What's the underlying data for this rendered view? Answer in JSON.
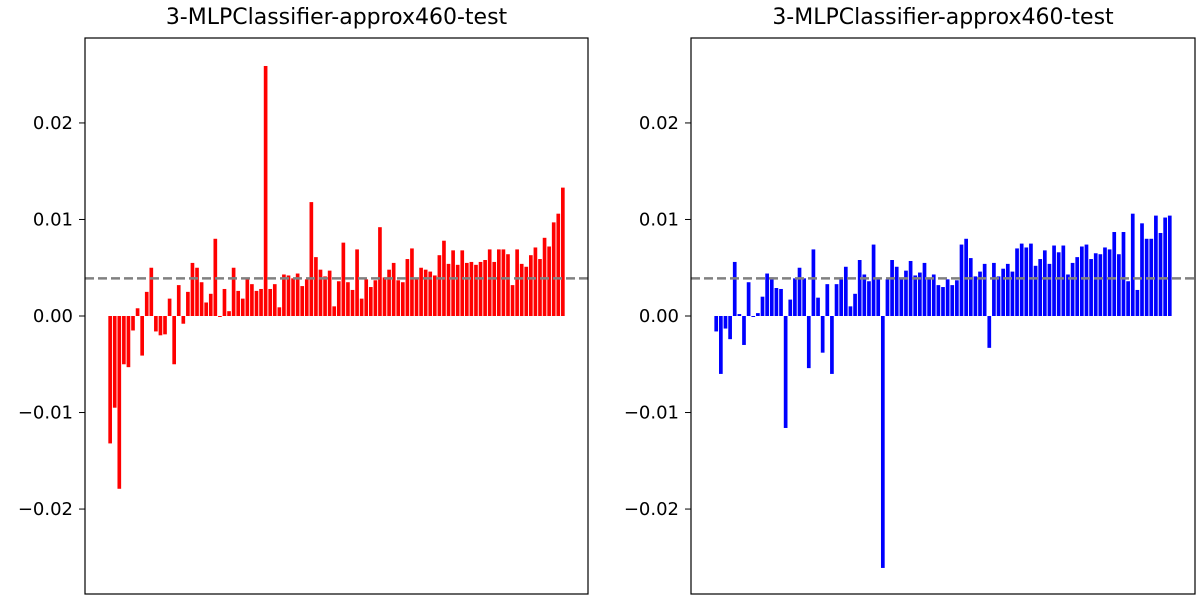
{
  "chart_data": [
    {
      "type": "bar",
      "title": "3-MLPClassifier-approx460-test",
      "xlabel": "",
      "ylabel": "",
      "ylim": [
        -0.0288,
        0.0288
      ],
      "yticks": [
        -0.02,
        -0.01,
        0.0,
        0.01,
        0.02
      ],
      "ytick_labels": [
        "−0.02",
        "−0.01",
        "0.00",
        "0.01",
        "0.02"
      ],
      "bar_color": "#ff0000",
      "reference_line": {
        "y": 0.0039,
        "style": "dashed",
        "color": "#808080"
      },
      "values": [
        -0.0132,
        -0.0095,
        -0.0179,
        -0.005,
        -0.0053,
        -0.0015,
        0.0008,
        -0.0041,
        0.0025,
        0.005,
        -0.0016,
        -0.002,
        -0.0019,
        0.0018,
        -0.005,
        0.0032,
        -0.0008,
        0.0025,
        0.0055,
        0.005,
        0.0035,
        0.0014,
        0.0023,
        0.008,
        -0.0001,
        0.0028,
        0.0005,
        0.005,
        0.0026,
        0.0018,
        0.0038,
        0.0033,
        0.0026,
        0.0028,
        0.0259,
        0.0028,
        0.0033,
        0.0009,
        0.0043,
        0.0042,
        0.0039,
        0.0044,
        0.0031,
        0.0038,
        0.0118,
        0.0061,
        0.0048,
        0.0041,
        0.0047,
        0.001,
        0.0036,
        0.0076,
        0.0035,
        0.0027,
        0.0069,
        0.0018,
        0.0038,
        0.003,
        0.0037,
        0.0092,
        0.004,
        0.0048,
        0.0055,
        0.0037,
        0.0035,
        0.0059,
        0.007,
        0.0039,
        0.005,
        0.0048,
        0.0046,
        0.0042,
        0.0063,
        0.0078,
        0.0054,
        0.0068,
        0.0053,
        0.0068,
        0.0055,
        0.0056,
        0.0053,
        0.0056,
        0.0058,
        0.0069,
        0.0056,
        0.0069,
        0.0069,
        0.0064,
        0.0032,
        0.0069,
        0.0054,
        0.0051,
        0.0063,
        0.0071,
        0.0059,
        0.0081,
        0.0072,
        0.0097,
        0.0106,
        0.0133
      ]
    },
    {
      "type": "bar",
      "title": "3-MLPClassifier-approx460-test",
      "xlabel": "",
      "ylabel": "",
      "ylim": [
        -0.0288,
        0.0288
      ],
      "yticks": [
        -0.02,
        -0.01,
        0.0,
        0.01,
        0.02
      ],
      "ytick_labels": [
        "−0.02",
        "−0.01",
        "0.00",
        "0.01",
        "0.02"
      ],
      "bar_color": "#0000ff",
      "reference_line": {
        "y": 0.0039,
        "style": "dashed",
        "color": "#808080"
      },
      "values": [
        -0.0016,
        -0.006,
        -0.0013,
        -0.0024,
        0.0056,
        0.0002,
        -0.003,
        0.0035,
        -0.0001,
        0.0003,
        0.002,
        0.0044,
        0.004,
        0.0029,
        0.0028,
        -0.0116,
        0.0017,
        0.0039,
        0.005,
        0.0039,
        -0.0054,
        0.0069,
        0.0019,
        -0.0038,
        0.0033,
        -0.006,
        0.0033,
        0.004,
        0.0051,
        0.001,
        0.0023,
        0.0058,
        0.0043,
        0.0036,
        0.0074,
        0.0038,
        -0.0261,
        0.0038,
        0.0058,
        0.0051,
        0.0039,
        0.0047,
        0.0057,
        0.0042,
        0.0045,
        0.0055,
        0.0038,
        0.0043,
        0.0032,
        0.003,
        0.0038,
        0.0032,
        0.0037,
        0.0074,
        0.008,
        0.006,
        0.0041,
        0.0046,
        0.0054,
        -0.0033,
        0.0055,
        0.0041,
        0.0049,
        0.0054,
        0.0046,
        0.007,
        0.0075,
        0.0071,
        0.0075,
        0.0052,
        0.0059,
        0.0068,
        0.0054,
        0.0073,
        0.0066,
        0.0073,
        0.0043,
        0.0055,
        0.0061,
        0.0072,
        0.0074,
        0.0059,
        0.0065,
        0.0064,
        0.0071,
        0.0069,
        0.0087,
        0.0064,
        0.0087,
        0.0036,
        0.0106,
        0.0027,
        0.0096,
        0.008,
        0.008,
        0.0104,
        0.0086,
        0.0102,
        0.0104
      ]
    }
  ]
}
